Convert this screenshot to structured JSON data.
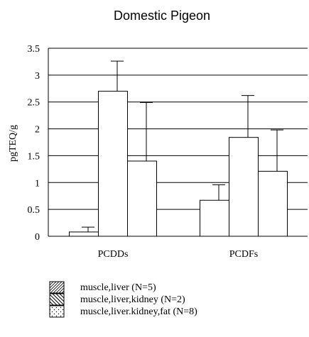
{
  "chart_data": {
    "type": "bar",
    "title": "Domestic Pigeon",
    "ylabel": "pgTEQ/g",
    "xlabel": "",
    "ylim": [
      0,
      3.5
    ],
    "yticks": [
      0,
      0.5,
      1,
      1.5,
      2,
      2.5,
      3,
      3.5
    ],
    "ytick_labels": [
      "0",
      "0.5",
      "1",
      "1.5",
      "2",
      "2.5",
      "3",
      "3.5"
    ],
    "grid": true,
    "legend_position": "bottom-left",
    "categories": [
      "PCDDs",
      "PCDFs"
    ],
    "series": [
      {
        "name": "muscle,liver (N=5)",
        "pattern": "diagonal-hatch",
        "values": [
          0.08,
          0.67
        ],
        "errors": [
          0.09,
          0.29
        ]
      },
      {
        "name": "muscle,liver,kidney (N=2)",
        "pattern": "diagonal-hatch",
        "values": [
          2.7,
          1.84
        ],
        "errors": [
          0.56,
          0.78
        ]
      },
      {
        "name": "muscle,liver.kidney,fat (N=8)",
        "pattern": "dotted",
        "values": [
          1.4,
          1.21
        ],
        "errors": [
          1.09,
          0.77
        ]
      }
    ]
  }
}
